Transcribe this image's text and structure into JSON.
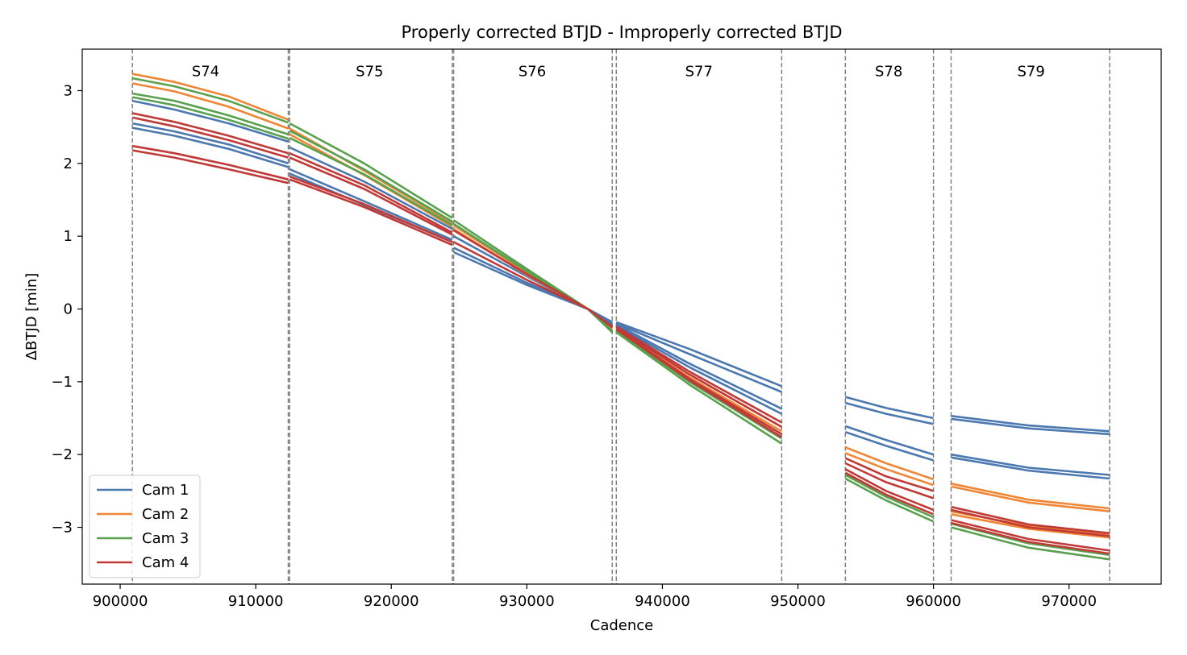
{
  "chart_data": {
    "type": "line",
    "title": "Properly corrected BTJD - Improperly corrected BTJD",
    "xlabel": "Cadence",
    "ylabel": "ΔBTJD [min]",
    "xlim": [
      897200,
      976800
    ],
    "ylim": [
      -3.78,
      3.57
    ],
    "xticks": [
      900000,
      910000,
      920000,
      930000,
      940000,
      950000,
      960000,
      970000
    ],
    "xtick_labels": [
      "900000",
      "910000",
      "920000",
      "930000",
      "940000",
      "950000",
      "960000",
      "970000"
    ],
    "yticks": [
      -3,
      -2,
      -1,
      0,
      1,
      2,
      3
    ],
    "ytick_labels": [
      "−3",
      "−2",
      "−1",
      "0",
      "1",
      "2",
      "3"
    ],
    "grid": false,
    "legend_position": "lower-left",
    "sector_boundaries": [
      900900,
      912400,
      912500,
      924500,
      924600,
      936300,
      936600,
      948800,
      953500,
      960000,
      961300,
      973000
    ],
    "sectors": [
      {
        "label": "S74",
        "x": 906300
      },
      {
        "label": "S75",
        "x": 918400
      },
      {
        "label": "S76",
        "x": 930400
      },
      {
        "label": "S77",
        "x": 942700
      },
      {
        "label": "S78",
        "x": 956700
      },
      {
        "label": "S79",
        "x": 967200
      }
    ],
    "series": [
      {
        "name": "Cam 1",
        "color": "#4c78b0",
        "segments": [
          {
            "x": [
              900900,
              904000,
              908000,
              912400
            ],
            "y": [
              2.86,
              2.74,
              2.55,
              2.3
            ]
          },
          {
            "x": [
              900900,
              904000,
              908000,
              912400
            ],
            "y": [
              2.55,
              2.44,
              2.26,
              2.0
            ]
          },
          {
            "x": [
              900900,
              904000,
              908000,
              912400
            ],
            "y": [
              2.49,
              2.38,
              2.2,
              1.95
            ]
          },
          {
            "x": [
              912500,
              918000,
              924500
            ],
            "y": [
              2.22,
              1.75,
              1.1
            ]
          },
          {
            "x": [
              912500,
              918000,
              924500
            ],
            "y": [
              1.92,
              1.48,
              0.95
            ]
          },
          {
            "x": [
              912500,
              918000,
              924500
            ],
            "y": [
              1.86,
              1.43,
              0.92
            ]
          },
          {
            "x": [
              924600,
              930000,
              934500,
              936300
            ],
            "y": [
              1.0,
              0.45,
              0.0,
              -0.18
            ]
          },
          {
            "x": [
              924600,
              930000,
              934500,
              936300
            ],
            "y": [
              0.84,
              0.36,
              0.0,
              -0.2
            ]
          },
          {
            "x": [
              924600,
              930000,
              934500,
              936300
            ],
            "y": [
              0.78,
              0.33,
              0.0,
              -0.22
            ]
          },
          {
            "x": [
              936600,
              942000,
              948800
            ],
            "y": [
              -0.18,
              -0.55,
              -1.06
            ]
          },
          {
            "x": [
              936600,
              942000,
              948800
            ],
            "y": [
              -0.2,
              -0.62,
              -1.14
            ]
          },
          {
            "x": [
              936600,
              942000,
              948800
            ],
            "y": [
              -0.21,
              -0.75,
              -1.37
            ]
          },
          {
            "x": [
              936600,
              942000,
              948800
            ],
            "y": [
              -0.23,
              -0.8,
              -1.44
            ]
          },
          {
            "x": [
              953500,
              956500,
              960000
            ],
            "y": [
              -1.21,
              -1.36,
              -1.5
            ]
          },
          {
            "x": [
              953500,
              956500,
              960000
            ],
            "y": [
              -1.29,
              -1.44,
              -1.58
            ]
          },
          {
            "x": [
              953500,
              956500,
              960000
            ],
            "y": [
              -1.61,
              -1.8,
              -2.0
            ]
          },
          {
            "x": [
              953500,
              956500,
              960000
            ],
            "y": [
              -1.69,
              -1.88,
              -2.08
            ]
          },
          {
            "x": [
              961300,
              967000,
              973000
            ],
            "y": [
              -1.47,
              -1.6,
              -1.68
            ]
          },
          {
            "x": [
              961300,
              967000,
              973000
            ],
            "y": [
              -1.51,
              -1.64,
              -1.72
            ]
          },
          {
            "x": [
              961300,
              967000,
              973000
            ],
            "y": [
              -2.0,
              -2.18,
              -2.28
            ]
          },
          {
            "x": [
              961300,
              967000,
              973000
            ],
            "y": [
              -2.04,
              -2.22,
              -2.33
            ]
          }
        ]
      },
      {
        "name": "Cam 2",
        "color": "#ef8636",
        "segments": [
          {
            "x": [
              900900,
              904000,
              908000,
              912400
            ],
            "y": [
              3.23,
              3.12,
              2.92,
              2.6
            ]
          },
          {
            "x": [
              900900,
              904000,
              908000,
              912400
            ],
            "y": [
              3.1,
              2.99,
              2.78,
              2.48
            ]
          },
          {
            "x": [
              912500,
              918000,
              924500
            ],
            "y": [
              2.48,
              1.9,
              1.18
            ]
          },
          {
            "x": [
              912500,
              918000,
              924500
            ],
            "y": [
              2.4,
              1.84,
              1.13
            ]
          },
          {
            "x": [
              924600,
              930000,
              934500,
              936300
            ],
            "y": [
              1.15,
              0.5,
              0.0,
              -0.27
            ]
          },
          {
            "x": [
              924600,
              930000,
              934500,
              936300
            ],
            "y": [
              1.1,
              0.47,
              0.0,
              -0.29
            ]
          },
          {
            "x": [
              936600,
              942000,
              948800
            ],
            "y": [
              -0.26,
              -0.9,
              -1.62
            ]
          },
          {
            "x": [
              936600,
              942000,
              948800
            ],
            "y": [
              -0.28,
              -0.94,
              -1.68
            ]
          },
          {
            "x": [
              953500,
              956500,
              960000
            ],
            "y": [
              -1.9,
              -2.12,
              -2.34
            ]
          },
          {
            "x": [
              953500,
              956500,
              960000
            ],
            "y": [
              -1.98,
              -2.2,
              -2.42
            ]
          },
          {
            "x": [
              961300,
              967000,
              973000
            ],
            "y": [
              -2.4,
              -2.62,
              -2.74
            ]
          },
          {
            "x": [
              961300,
              967000,
              973000
            ],
            "y": [
              -2.44,
              -2.66,
              -2.78
            ]
          },
          {
            "x": [
              961300,
              967000,
              973000
            ],
            "y": [
              -2.78,
              -2.98,
              -3.1
            ]
          },
          {
            "x": [
              961300,
              967000,
              973000
            ],
            "y": [
              -2.82,
              -3.02,
              -3.14
            ]
          }
        ]
      },
      {
        "name": "Cam 3",
        "color": "#59a14f",
        "segments": [
          {
            "x": [
              900900,
              904000,
              908000,
              912400
            ],
            "y": [
              3.17,
              3.06,
              2.86,
              2.56
            ]
          },
          {
            "x": [
              900900,
              904000,
              908000,
              912400
            ],
            "y": [
              2.96,
              2.86,
              2.66,
              2.4
            ]
          },
          {
            "x": [
              900900,
              904000,
              908000,
              912400
            ],
            "y": [
              2.91,
              2.8,
              2.6,
              2.34
            ]
          },
          {
            "x": [
              912500,
              918000,
              924500
            ],
            "y": [
              2.55,
              2.0,
              1.25
            ]
          },
          {
            "x": [
              912500,
              918000,
              924500
            ],
            "y": [
              2.45,
              1.92,
              1.2
            ]
          },
          {
            "x": [
              912500,
              918000,
              924500
            ],
            "y": [
              2.35,
              1.85,
              1.15
            ]
          },
          {
            "x": [
              924600,
              930000,
              934500,
              936300
            ],
            "y": [
              1.22,
              0.55,
              0.0,
              -0.3
            ]
          },
          {
            "x": [
              924600,
              930000,
              934500,
              936300
            ],
            "y": [
              1.17,
              0.52,
              0.0,
              -0.32
            ]
          },
          {
            "x": [
              936600,
              942000,
              948800
            ],
            "y": [
              -0.3,
              -1.0,
              -1.78
            ]
          },
          {
            "x": [
              936600,
              942000,
              948800
            ],
            "y": [
              -0.32,
              -1.04,
              -1.85
            ]
          },
          {
            "x": [
              953500,
              956500,
              960000
            ],
            "y": [
              -2.28,
              -2.58,
              -2.86
            ]
          },
          {
            "x": [
              953500,
              956500,
              960000
            ],
            "y": [
              -2.33,
              -2.63,
              -2.92
            ]
          },
          {
            "x": [
              961300,
              967000,
              973000
            ],
            "y": [
              -2.95,
              -3.22,
              -3.38
            ]
          },
          {
            "x": [
              961300,
              967000,
              973000
            ],
            "y": [
              -3.0,
              -3.28,
              -3.44
            ]
          }
        ]
      },
      {
        "name": "Cam 4",
        "color": "#c03a37",
        "segments": [
          {
            "x": [
              900900,
              904000,
              908000,
              912400
            ],
            "y": [
              2.69,
              2.57,
              2.38,
              2.14
            ]
          },
          {
            "x": [
              900900,
              904000,
              908000,
              912400
            ],
            "y": [
              2.63,
              2.51,
              2.32,
              2.08
            ]
          },
          {
            "x": [
              900900,
              904000,
              908000,
              912400
            ],
            "y": [
              2.24,
              2.14,
              1.98,
              1.78
            ]
          },
          {
            "x": [
              900900,
              904000,
              908000,
              912400
            ],
            "y": [
              2.18,
              2.08,
              1.92,
              1.73
            ]
          },
          {
            "x": [
              912500,
              918000,
              924500
            ],
            "y": [
              2.14,
              1.7,
              1.05
            ]
          },
          {
            "x": [
              912500,
              918000,
              924500
            ],
            "y": [
              2.08,
              1.65,
              1.02
            ]
          },
          {
            "x": [
              912500,
              918000,
              924500
            ],
            "y": [
              1.82,
              1.44,
              0.92
            ]
          },
          {
            "x": [
              912500,
              918000,
              924500
            ],
            "y": [
              1.78,
              1.4,
              0.88
            ]
          },
          {
            "x": [
              924600,
              930000,
              934500,
              936300
            ],
            "y": [
              1.08,
              0.48,
              0.0,
              -0.25
            ]
          },
          {
            "x": [
              924600,
              930000,
              934500,
              936300
            ],
            "y": [
              0.92,
              0.4,
              0.0,
              -0.24
            ]
          },
          {
            "x": [
              936600,
              942000,
              948800
            ],
            "y": [
              -0.24,
              -0.86,
              -1.56
            ]
          },
          {
            "x": [
              936600,
              942000,
              948800
            ],
            "y": [
              -0.25,
              -0.9,
              -1.62
            ]
          },
          {
            "x": [
              936600,
              942000,
              948800
            ],
            "y": [
              -0.27,
              -0.96,
              -1.72
            ]
          },
          {
            "x": [
              936600,
              942000,
              948800
            ],
            "y": [
              -0.28,
              -0.98,
              -1.76
            ]
          },
          {
            "x": [
              953500,
              956500,
              960000
            ],
            "y": [
              -2.05,
              -2.3,
              -2.5
            ]
          },
          {
            "x": [
              953500,
              956500,
              960000
            ],
            "y": [
              -2.12,
              -2.38,
              -2.6
            ]
          },
          {
            "x": [
              953500,
              956500,
              960000
            ],
            "y": [
              -2.2,
              -2.5,
              -2.76
            ]
          },
          {
            "x": [
              953500,
              956500,
              960000
            ],
            "y": [
              -2.25,
              -2.55,
              -2.82
            ]
          },
          {
            "x": [
              961300,
              967000,
              973000
            ],
            "y": [
              -2.72,
              -2.96,
              -3.08
            ]
          },
          {
            "x": [
              961300,
              967000,
              973000
            ],
            "y": [
              -2.76,
              -3.0,
              -3.12
            ]
          },
          {
            "x": [
              961300,
              967000,
              973000
            ],
            "y": [
              -2.9,
              -3.16,
              -3.32
            ]
          },
          {
            "x": [
              961300,
              967000,
              973000
            ],
            "y": [
              -2.94,
              -3.2,
              -3.36
            ]
          }
        ]
      }
    ]
  }
}
